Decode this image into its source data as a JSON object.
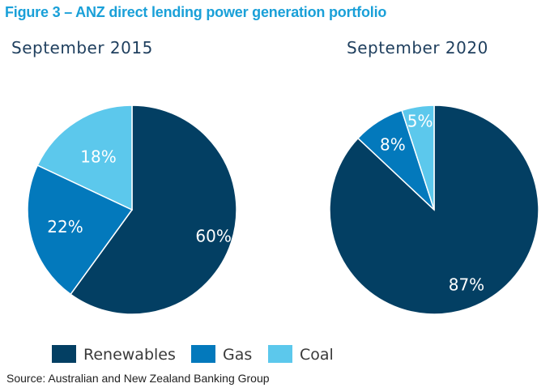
{
  "figure_title": "Figure 3 – ANZ direct lending power generation portfolio",
  "source": "Source: Australian and New Zealand Banking Group",
  "colors": {
    "renewables": "#033f63",
    "gas": "#0379bc",
    "coal": "#5cc8ec"
  },
  "chart_data": [
    {
      "type": "pie",
      "title": "September 2015",
      "categories": [
        "Renewables",
        "Gas",
        "Coal"
      ],
      "values": [
        60,
        22,
        18
      ],
      "labels": [
        "60%",
        "22%",
        "18%"
      ],
      "legend": "bottom"
    },
    {
      "type": "pie",
      "title": "September 2020",
      "categories": [
        "Renewables",
        "Gas",
        "Coal"
      ],
      "values": [
        87,
        8,
        5
      ],
      "labels": [
        "87%",
        "8%",
        "5%"
      ],
      "legend": "bottom"
    }
  ],
  "legend": {
    "items": [
      {
        "label": "Renewables",
        "color_key": "renewables"
      },
      {
        "label": "Gas",
        "color_key": "gas"
      },
      {
        "label": "Coal",
        "color_key": "coal"
      }
    ]
  }
}
